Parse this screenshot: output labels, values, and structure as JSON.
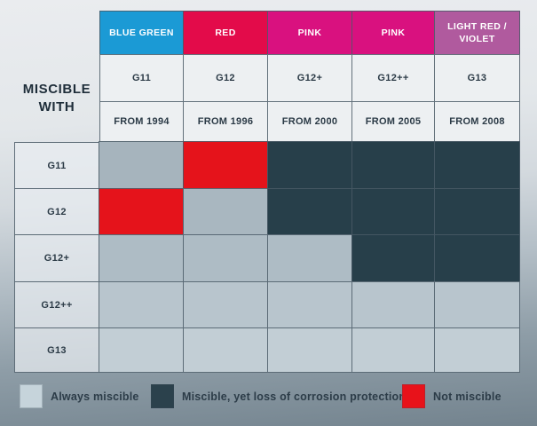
{
  "table": {
    "corner_label": "MISCIBLE WITH",
    "columns": [
      {
        "color_label": "BLUE GREEN",
        "color": "#1b9ad5",
        "name": "G11",
        "from": "FROM 1994"
      },
      {
        "color_label": "RED",
        "color": "#e30b4a",
        "name": "G12",
        "from": "FROM 1996"
      },
      {
        "color_label": "PINK",
        "color": "#d9117f",
        "name": "G12+",
        "from": "FROM 2000"
      },
      {
        "color_label": "PINK",
        "color": "#d9117f",
        "name": "G12++",
        "from": "FROM 2005"
      },
      {
        "color_label": "LIGHT RED / VIOLET",
        "color": "#b05a9e",
        "name": "G13",
        "from": "FROM 2008"
      }
    ],
    "rows": [
      {
        "label": "G11",
        "cells": [
          "always",
          "not",
          "loss",
          "loss",
          "loss"
        ]
      },
      {
        "label": "G12",
        "cells": [
          "not",
          "always",
          "loss",
          "loss",
          "loss"
        ]
      },
      {
        "label": "G12+",
        "cells": [
          "always",
          "always",
          "always",
          "loss",
          "loss"
        ]
      },
      {
        "label": "G12++",
        "cells": [
          "always",
          "always",
          "always",
          "always",
          "always"
        ]
      },
      {
        "label": "G13",
        "cells": [
          "always",
          "always",
          "always",
          "always",
          "always"
        ]
      }
    ]
  },
  "cell_colors": {
    "always": "#abb9c2",
    "loss": "#273f4a",
    "not": "#e5131b"
  },
  "legend": [
    {
      "key": "always",
      "label": "Always miscible",
      "color": "#c6d4db"
    },
    {
      "key": "loss",
      "label": "Miscible, yet loss of corrosion protection",
      "color": "#2b414c"
    },
    {
      "key": "not",
      "label": "Not miscible",
      "color": "#e8121a"
    }
  ],
  "chart_data": {
    "type": "heatmap",
    "title": "MISCIBLE WITH",
    "x_categories": [
      "G11",
      "G12",
      "G12+",
      "G12++",
      "G13"
    ],
    "x_color_names": [
      "BLUE GREEN",
      "RED",
      "PINK",
      "PINK",
      "LIGHT RED / VIOLET"
    ],
    "x_intro_years": [
      "FROM 1994",
      "FROM 1996",
      "FROM 2000",
      "FROM 2005",
      "FROM 2008"
    ],
    "y_categories": [
      "G11",
      "G12",
      "G12+",
      "G12++",
      "G13"
    ],
    "values": [
      [
        "always",
        "not",
        "loss",
        "loss",
        "loss"
      ],
      [
        "not",
        "always",
        "loss",
        "loss",
        "loss"
      ],
      [
        "always",
        "always",
        "always",
        "loss",
        "loss"
      ],
      [
        "always",
        "always",
        "always",
        "always",
        "always"
      ],
      [
        "always",
        "always",
        "always",
        "always",
        "always"
      ]
    ],
    "value_meanings": {
      "always": "Always miscible",
      "loss": "Miscible, yet loss of corrosion protection",
      "not": "Not miscible"
    },
    "legend_position": "bottom",
    "grid": true
  }
}
